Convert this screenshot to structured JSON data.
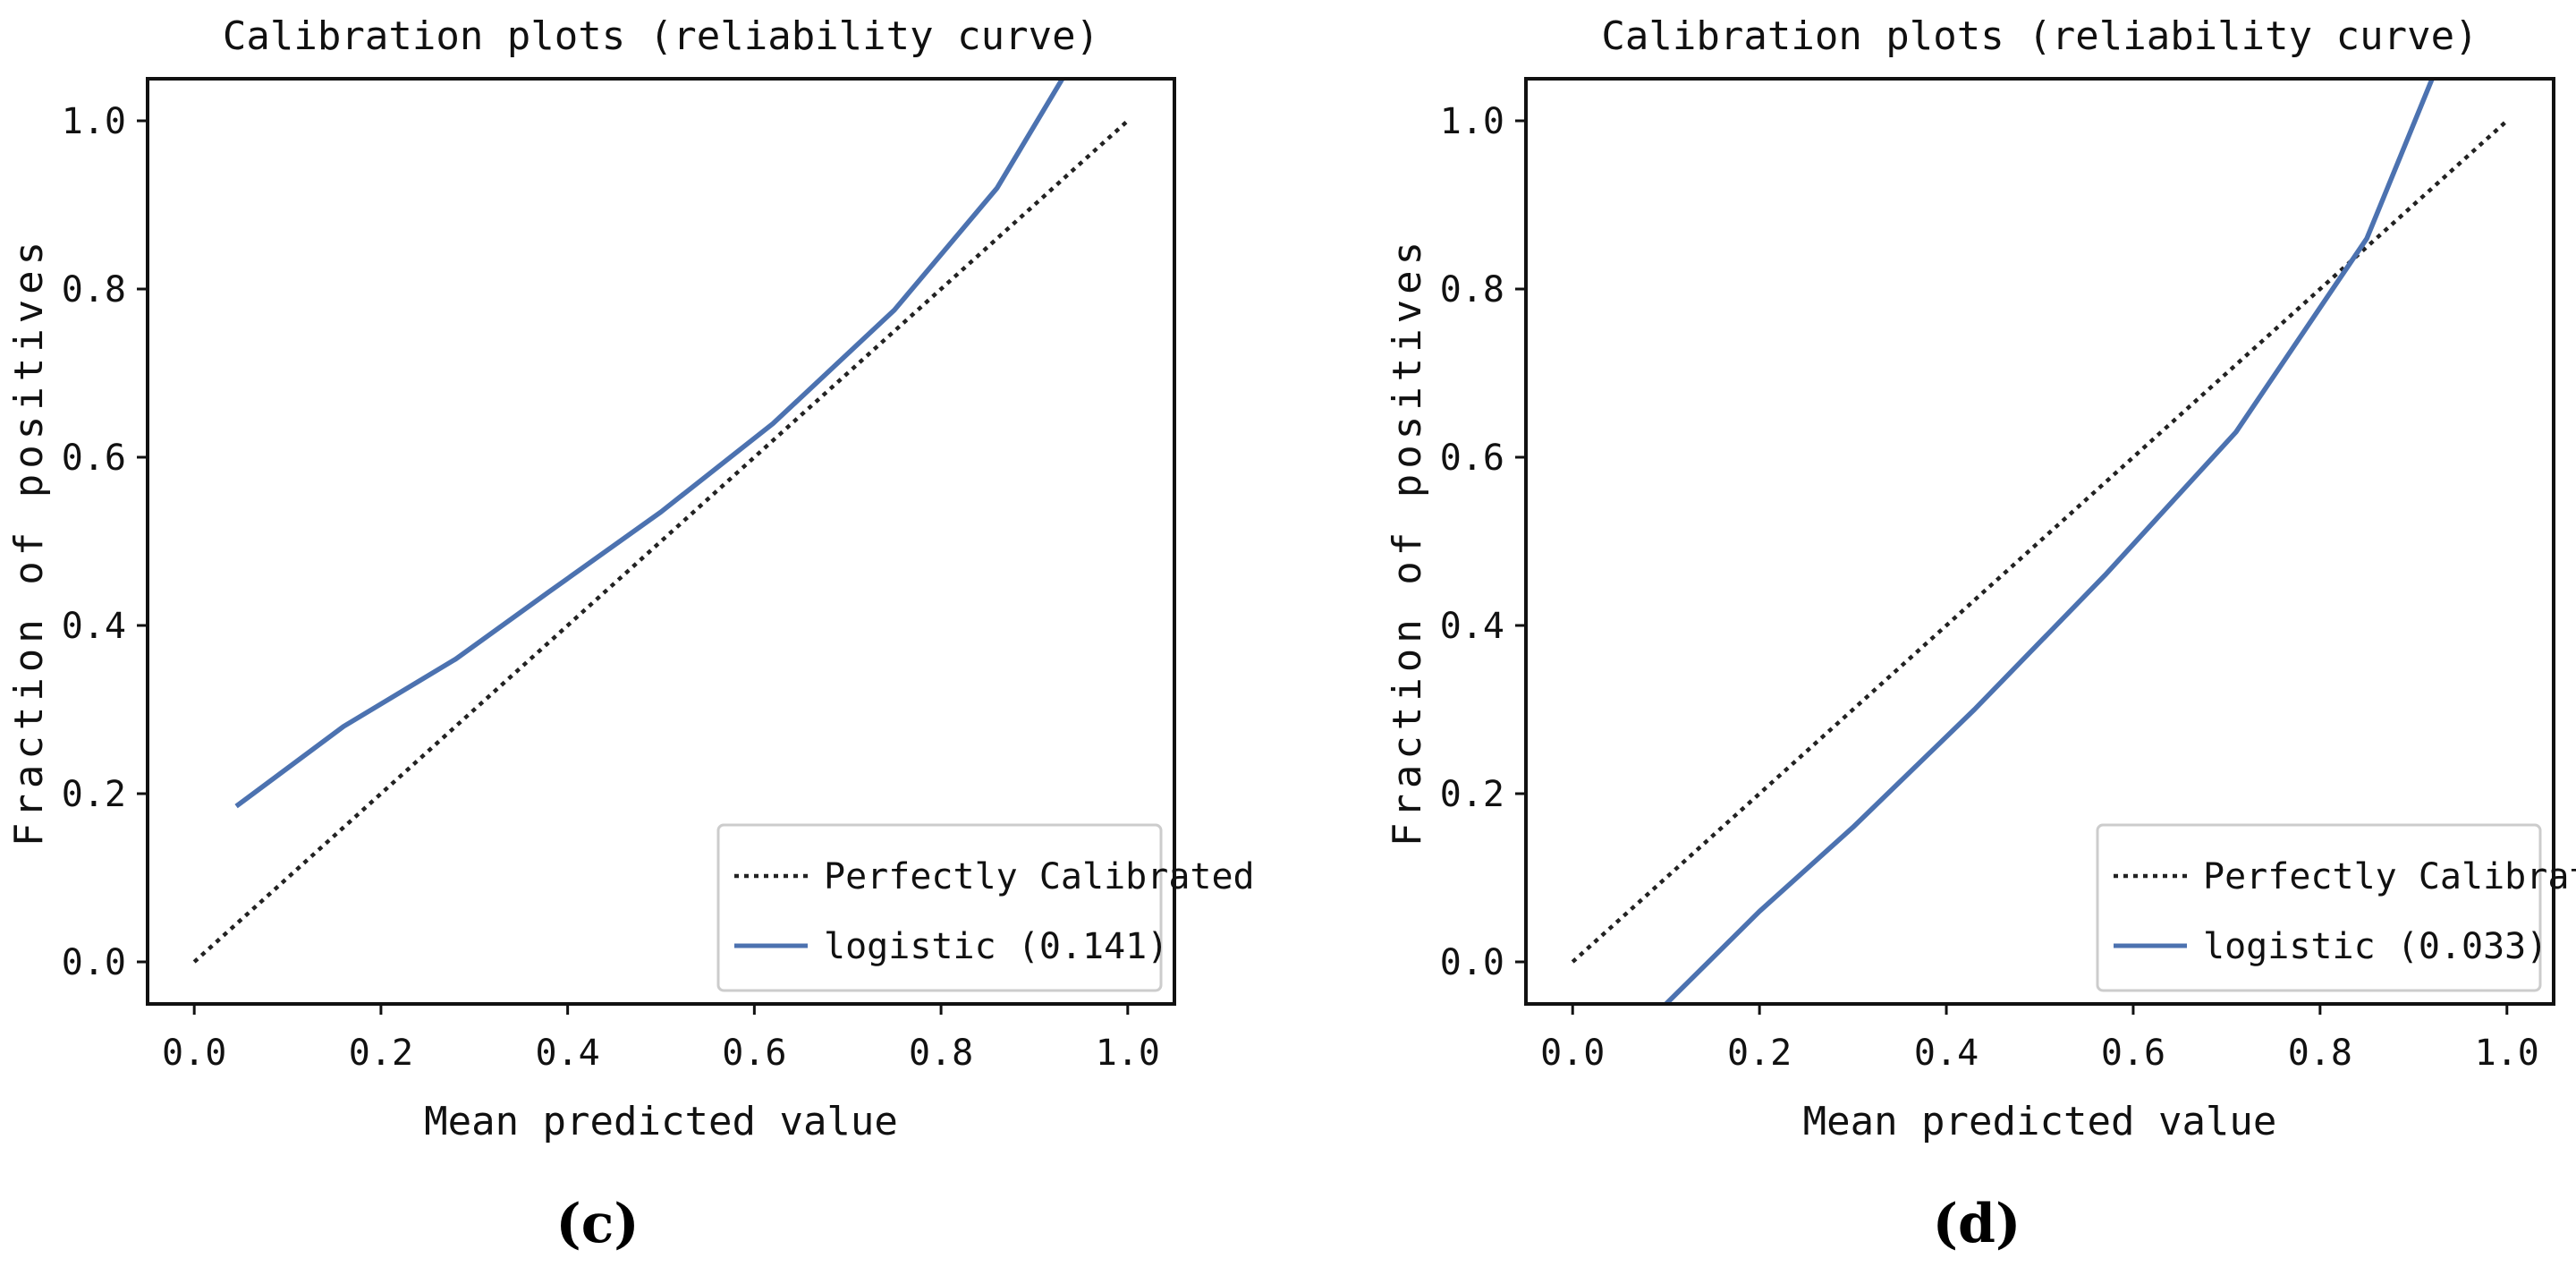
{
  "chart_data": [
    {
      "type": "line",
      "panel_label": "(c)",
      "title": "Calibration plots  (reliability curve)",
      "xlabel": "Mean predicted value",
      "ylabel": "Fraction of positives",
      "xlim": [
        -0.05,
        1.05
      ],
      "ylim": [
        -0.05,
        1.05
      ],
      "xticks": [
        "0.0",
        "0.2",
        "0.4",
        "0.6",
        "0.8",
        "1.0"
      ],
      "yticks": [
        "0.0",
        "0.2",
        "0.4",
        "0.6",
        "0.8",
        "1.0"
      ],
      "grid": false,
      "legend_position": "lower-right",
      "series": [
        {
          "name": "Perfectly Calibrated",
          "style": "dotted",
          "color": "#222222",
          "x": [
            0.0,
            1.0
          ],
          "y": [
            0.0,
            1.0
          ]
        },
        {
          "name": "logistic (0.141)",
          "style": "solid",
          "color": "#4c72b0",
          "x": [
            0.045,
            0.16,
            0.28,
            0.38,
            0.5,
            0.62,
            0.75,
            0.86,
            0.93
          ],
          "y": [
            0.185,
            0.28,
            0.36,
            0.44,
            0.535,
            0.64,
            0.775,
            0.92,
            1.05
          ]
        }
      ]
    },
    {
      "type": "line",
      "panel_label": "(d)",
      "title": "Calibration plots  (reliability curve)",
      "xlabel": "Mean predicted value",
      "ylabel": "Fraction of positives",
      "xlim": [
        -0.05,
        1.05
      ],
      "ylim": [
        -0.05,
        1.05
      ],
      "xticks": [
        "0.0",
        "0.2",
        "0.4",
        "0.6",
        "0.8",
        "1.0"
      ],
      "yticks": [
        "0.0",
        "0.2",
        "0.4",
        "0.6",
        "0.8",
        "1.0"
      ],
      "grid": false,
      "legend_position": "lower-right",
      "series": [
        {
          "name": "Perfectly Calibrated",
          "style": "dotted",
          "color": "#222222",
          "x": [
            0.0,
            1.0
          ],
          "y": [
            0.0,
            1.0
          ]
        },
        {
          "name": "logistic (0.033)",
          "style": "solid",
          "color": "#4c72b0",
          "x": [
            0.1,
            0.2,
            0.3,
            0.43,
            0.57,
            0.71,
            0.85,
            0.92
          ],
          "y": [
            -0.05,
            0.06,
            0.16,
            0.3,
            0.46,
            0.63,
            0.86,
            1.05
          ]
        }
      ]
    }
  ]
}
